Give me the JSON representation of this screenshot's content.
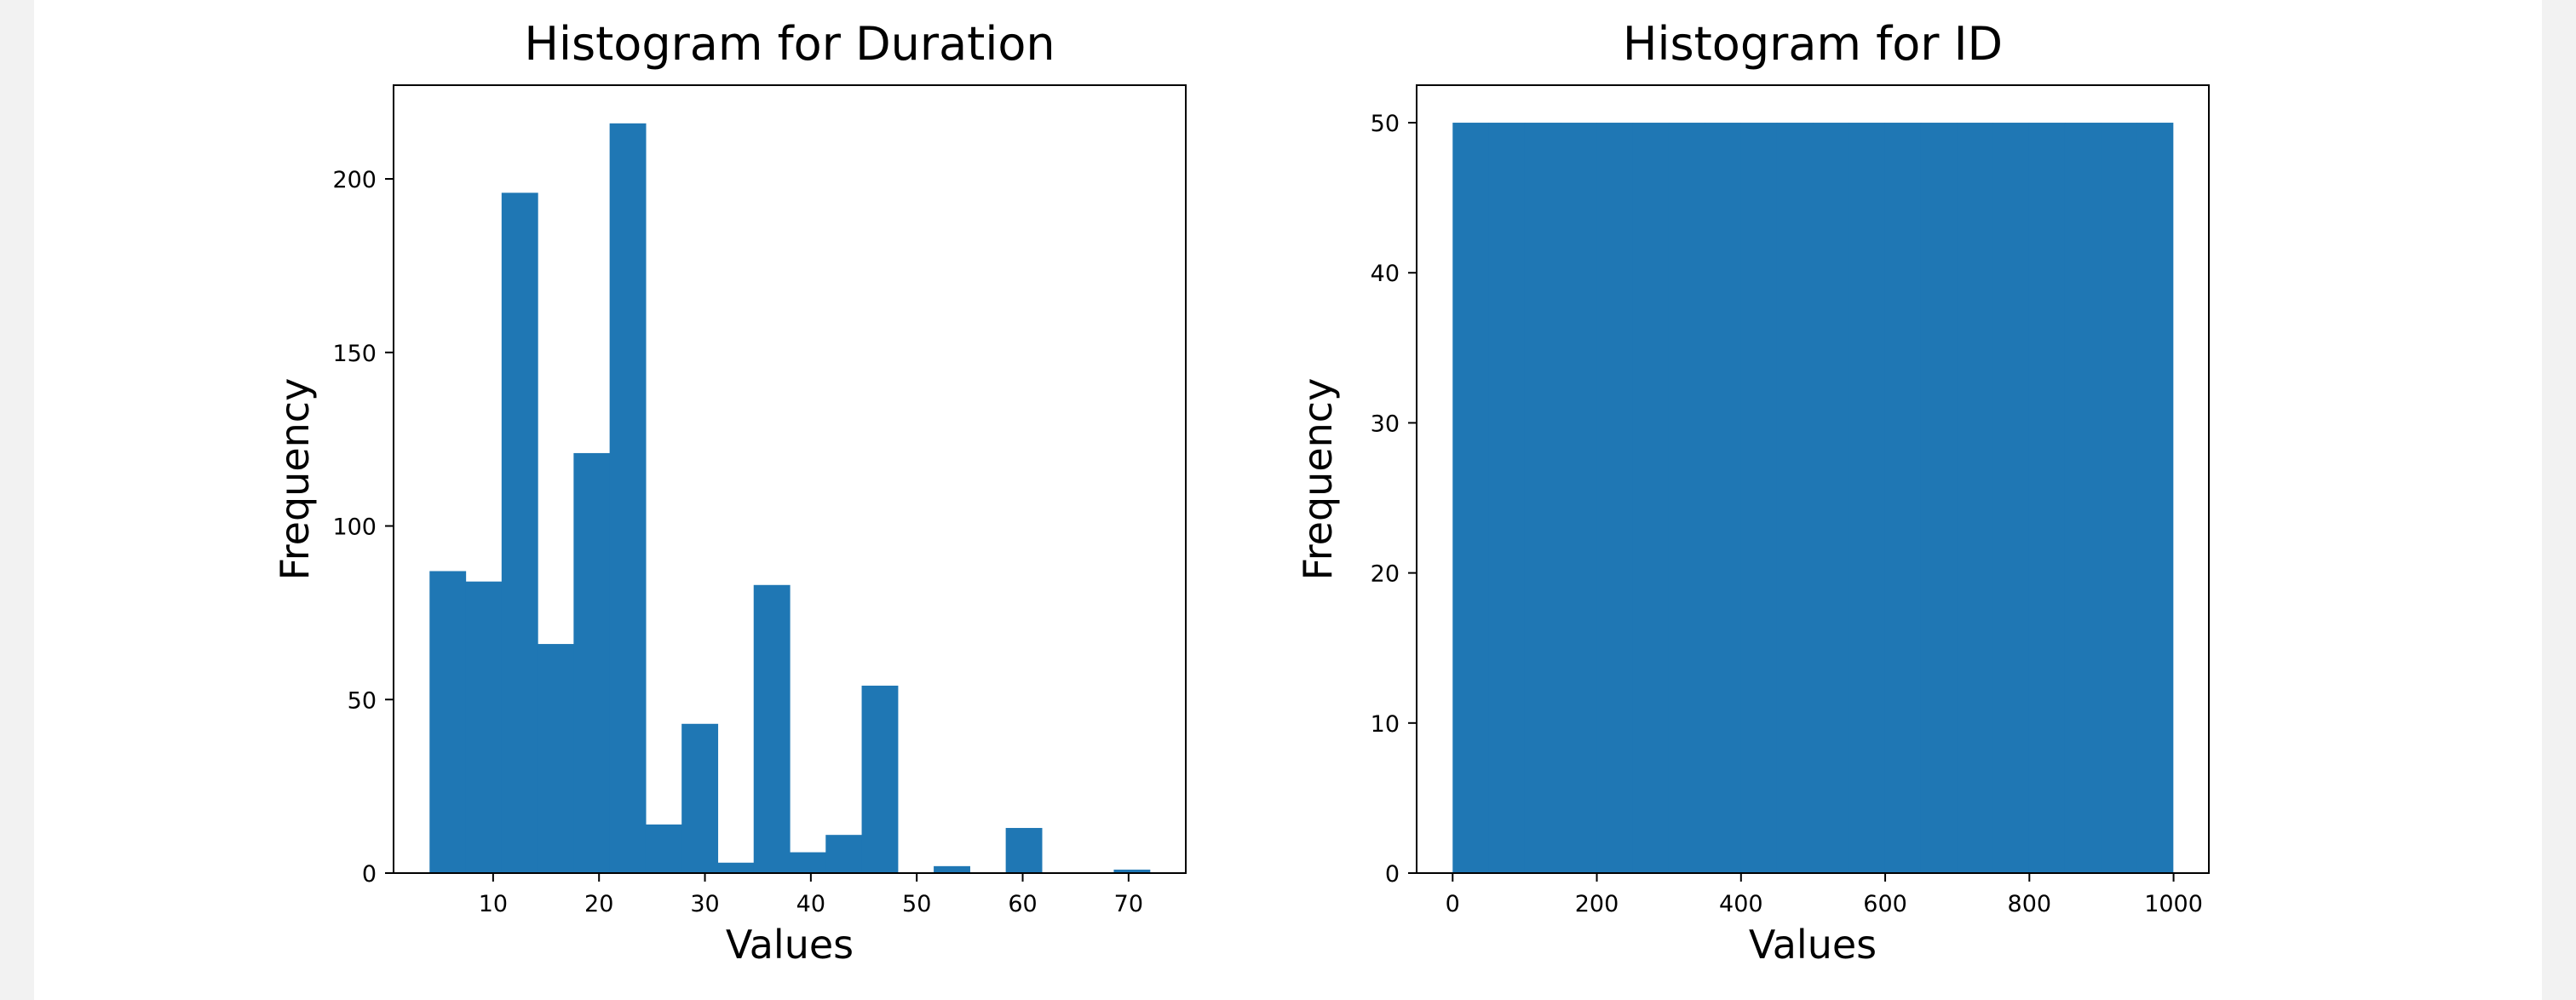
{
  "colors": {
    "bar": "#1f77b4",
    "axis": "#000000",
    "page_background": "#f2f2f2",
    "figure_background": "#ffffff"
  },
  "chart_data": [
    {
      "type": "bar",
      "title": "Histogram for Duration",
      "xlabel": "Values",
      "ylabel": "Frequency",
      "xlim": [
        0.6,
        75.4
      ],
      "ylim": [
        0,
        227
      ],
      "x_ticks": [
        10,
        20,
        30,
        40,
        50,
        60,
        70
      ],
      "y_ticks": [
        0,
        50,
        100,
        150,
        200
      ],
      "grid": false,
      "bin_edges": [
        4,
        7.4,
        10.8,
        14.2,
        17.6,
        21,
        24.4,
        27.8,
        31.2,
        34.6,
        38,
        41.4,
        44.8,
        48.2,
        51.6,
        55,
        58.4,
        61.8,
        65.2,
        68.6,
        72
      ],
      "values": [
        87,
        84,
        196,
        66,
        121,
        216,
        14,
        43,
        3,
        83,
        6,
        11,
        54,
        0,
        2,
        0,
        13,
        0,
        0,
        1
      ]
    },
    {
      "type": "bar",
      "title": "Histogram for ID",
      "xlabel": "Values",
      "ylabel": "Frequency",
      "xlim": [
        -49.95,
        1048.95
      ],
      "ylim": [
        0,
        52.5
      ],
      "x_ticks": [
        0,
        200,
        400,
        600,
        800,
        1000
      ],
      "y_ticks": [
        0,
        10,
        20,
        30,
        40,
        50
      ],
      "grid": false,
      "bin_edges": [
        0,
        49.95,
        99.9,
        149.85,
        199.8,
        249.75,
        299.7,
        349.65,
        399.6,
        449.55,
        499.5,
        549.45,
        599.4,
        649.35,
        699.3,
        749.25,
        799.2,
        849.15,
        899.1,
        949.05,
        999
      ],
      "values": [
        50,
        50,
        50,
        50,
        50,
        50,
        50,
        50,
        50,
        50,
        50,
        50,
        50,
        50,
        50,
        50,
        50,
        50,
        50,
        50
      ]
    }
  ]
}
